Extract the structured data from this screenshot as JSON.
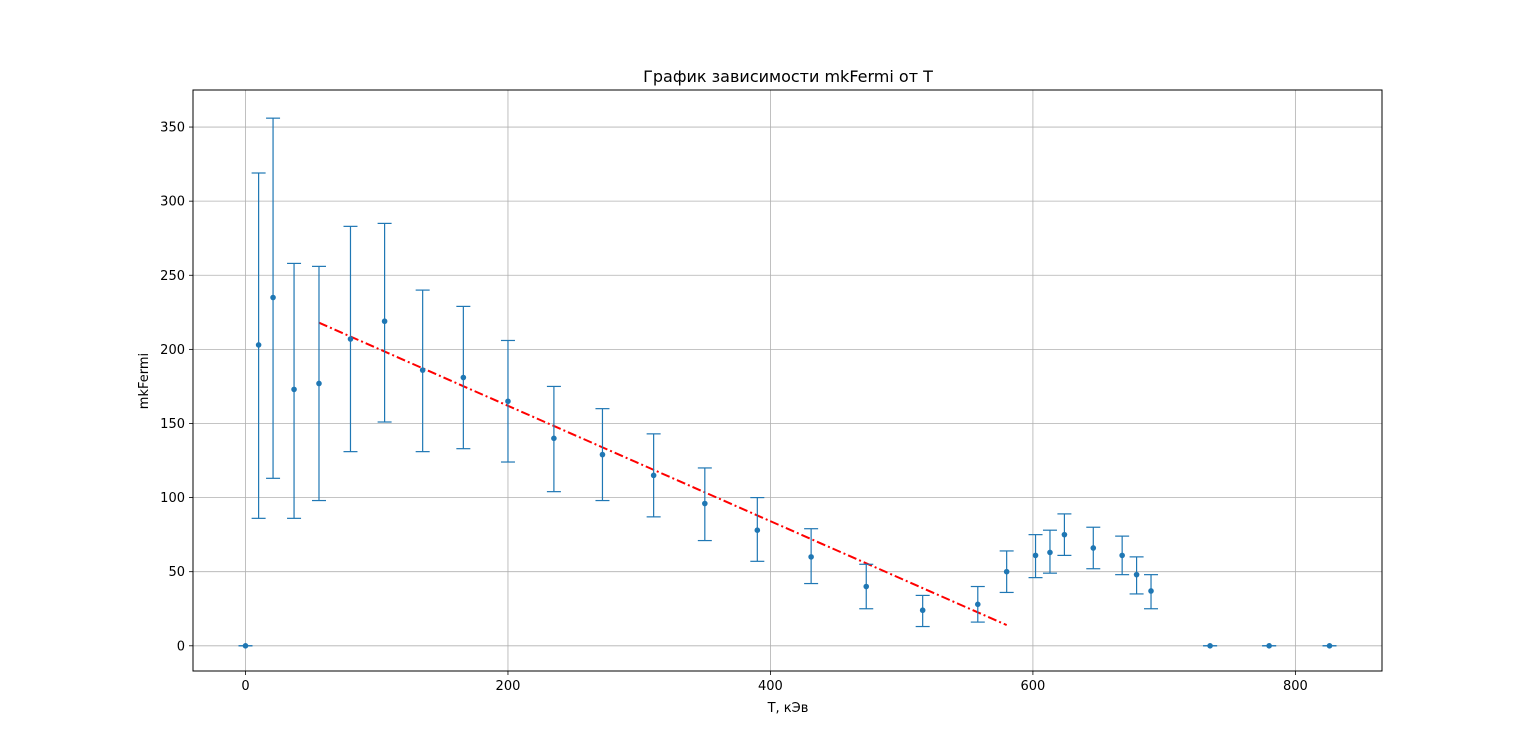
{
  "chart_data": {
    "type": "scatter",
    "title": "График зависимости mkFermi от T",
    "xlabel": "T, кЭв",
    "ylabel": "mkFermi",
    "xlim": [
      -40,
      866
    ],
    "ylim": [
      -17,
      375
    ],
    "xticks": [
      0,
      200,
      400,
      600,
      800
    ],
    "yticks": [
      0,
      50,
      100,
      150,
      200,
      250,
      300,
      350
    ],
    "grid": true,
    "series": [
      {
        "color": "#1f77b4",
        "marker": "circle",
        "errorbars": true,
        "points": [
          {
            "x": 0,
            "y": 0,
            "err_low": 0,
            "err_high": 0
          },
          {
            "x": 10,
            "y": 203,
            "err_low": 86,
            "err_high": 319
          },
          {
            "x": 21,
            "y": 235,
            "err_low": 113,
            "err_high": 356
          },
          {
            "x": 37,
            "y": 173,
            "err_low": 86,
            "err_high": 258
          },
          {
            "x": 56,
            "y": 177,
            "err_low": 98,
            "err_high": 256
          },
          {
            "x": 80,
            "y": 207,
            "err_low": 131,
            "err_high": 283
          },
          {
            "x": 106,
            "y": 219,
            "err_low": 151,
            "err_high": 285
          },
          {
            "x": 135,
            "y": 186,
            "err_low": 131,
            "err_high": 240
          },
          {
            "x": 166,
            "y": 181,
            "err_low": 133,
            "err_high": 229
          },
          {
            "x": 200,
            "y": 165,
            "err_low": 124,
            "err_high": 206
          },
          {
            "x": 235,
            "y": 140,
            "err_low": 104,
            "err_high": 175
          },
          {
            "x": 272,
            "y": 129,
            "err_low": 98,
            "err_high": 160
          },
          {
            "x": 311,
            "y": 115,
            "err_low": 87,
            "err_high": 143
          },
          {
            "x": 350,
            "y": 96,
            "err_low": 71,
            "err_high": 120
          },
          {
            "x": 390,
            "y": 78,
            "err_low": 57,
            "err_high": 100
          },
          {
            "x": 431,
            "y": 60,
            "err_low": 42,
            "err_high": 79
          },
          {
            "x": 473,
            "y": 40,
            "err_low": 25,
            "err_high": 55
          },
          {
            "x": 516,
            "y": 24,
            "err_low": 13,
            "err_high": 34
          },
          {
            "x": 558,
            "y": 28,
            "err_low": 16,
            "err_high": 40
          },
          {
            "x": 580,
            "y": 50,
            "err_low": 36,
            "err_high": 64
          },
          {
            "x": 602,
            "y": 61,
            "err_low": 46,
            "err_high": 75
          },
          {
            "x": 613,
            "y": 63,
            "err_low": 49,
            "err_high": 78
          },
          {
            "x": 624,
            "y": 75,
            "err_low": 61,
            "err_high": 89
          },
          {
            "x": 646,
            "y": 66,
            "err_low": 52,
            "err_high": 80
          },
          {
            "x": 668,
            "y": 61,
            "err_low": 48,
            "err_high": 74
          },
          {
            "x": 679,
            "y": 48,
            "err_low": 35,
            "err_high": 60
          },
          {
            "x": 690,
            "y": 37,
            "err_low": 25,
            "err_high": 48
          },
          {
            "x": 735,
            "y": 0,
            "err_low": 0,
            "err_high": 0
          },
          {
            "x": 780,
            "y": 0,
            "err_low": 0,
            "err_high": 0
          },
          {
            "x": 826,
            "y": 0,
            "err_low": 0,
            "err_high": 0
          }
        ]
      }
    ],
    "fit_line": {
      "color": "#ff0000",
      "style": "dash-dot",
      "x": [
        56,
        580
      ],
      "y": [
        218,
        14
      ]
    }
  }
}
